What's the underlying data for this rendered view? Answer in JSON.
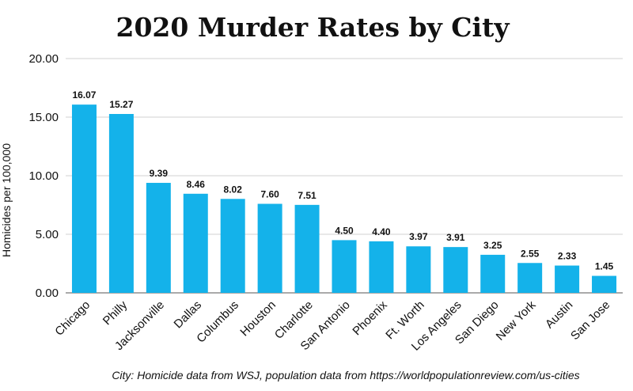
{
  "chart_data": {
    "type": "bar",
    "title": "2020 Murder Rates by City",
    "ylabel": "Homicides per 100,000",
    "xlabel": "",
    "source": "City: Homicide data from WSJ, population data from https://worldpopulationreview.com/us-cities",
    "categories": [
      "Chicago",
      "Philly",
      "Jacksonville",
      "Dallas",
      "Columbus",
      "Houston",
      "Charlotte",
      "San Antonio",
      "Phoenix",
      "Ft. Worth",
      "Los Angeles",
      "San Diego",
      "New York",
      "Austin",
      "San Jose"
    ],
    "values": [
      16.07,
      15.27,
      9.39,
      8.46,
      8.02,
      7.6,
      7.51,
      4.5,
      4.4,
      3.97,
      3.91,
      3.25,
      2.55,
      2.33,
      1.45
    ],
    "value_labels": [
      "16.07",
      "15.27",
      "9.39",
      "8.46",
      "8.02",
      "7.60",
      "7.51",
      "4.50",
      "4.40",
      "3.97",
      "3.91",
      "3.25",
      "2.55",
      "2.33",
      "1.45"
    ],
    "ylim": [
      0,
      20
    ],
    "yticks": [
      0,
      5,
      10,
      15,
      20
    ],
    "ytick_labels": [
      "0.00",
      "5.00",
      "10.00",
      "15.00",
      "20.00"
    ],
    "grid": true,
    "legend": "none",
    "bar_color": "#14b2ea"
  }
}
